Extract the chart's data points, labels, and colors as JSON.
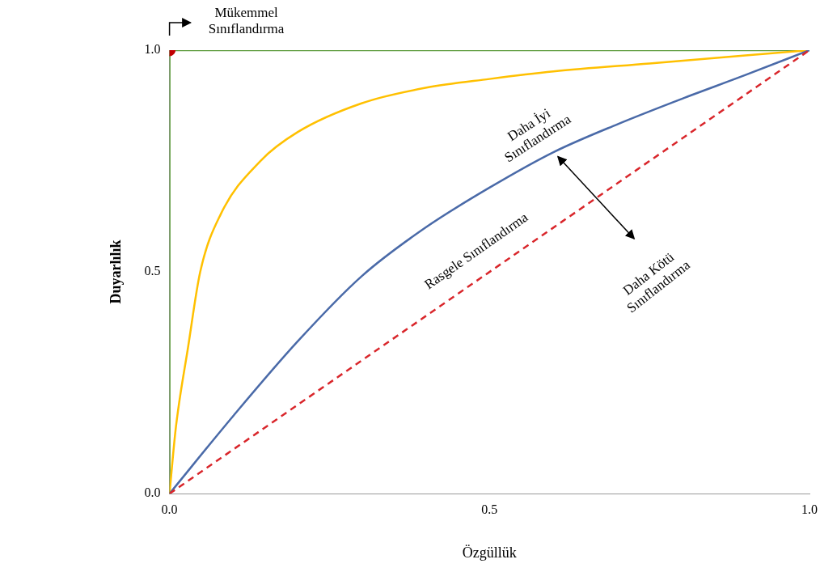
{
  "chart_data": {
    "type": "line",
    "xlabel": "Özgüllük",
    "ylabel": "Duyarlılık",
    "xlim": [
      0,
      1
    ],
    "ylim": [
      0,
      1
    ],
    "xticks": [
      {
        "value": 0,
        "label": "0.0"
      },
      {
        "value": 0.5,
        "label": "0.5"
      },
      {
        "value": 1,
        "label": "1.0"
      }
    ],
    "yticks": [
      {
        "value": 0,
        "label": "0.0"
      },
      {
        "value": 0.5,
        "label": "0.5"
      },
      {
        "value": 1,
        "label": "1.0"
      }
    ],
    "grid": false,
    "legend": false,
    "marker": "none",
    "series": [
      {
        "color": "#5b9a3a",
        "x": [
          0,
          0,
          1
        ],
        "values": [
          0,
          1,
          1
        ]
      },
      {
        "color": "#ffc000",
        "x": [
          0,
          0.01,
          0.029,
          0.048,
          0.08,
          0.142,
          0.2,
          0.3,
          0.4,
          0.5,
          0.6,
          0.75,
          0.9,
          1
        ],
        "values": [
          0,
          0.15,
          0.33,
          0.5,
          0.63,
          0.75,
          0.815,
          0.88,
          0.915,
          0.935,
          0.952,
          0.97,
          0.988,
          1
        ]
      },
      {
        "color": "#4a6aa8",
        "x": [
          0,
          0.1,
          0.2,
          0.3,
          0.4,
          0.5,
          0.6,
          0.7,
          0.8,
          0.9,
          1
        ],
        "values": [
          0,
          0.176,
          0.343,
          0.49,
          0.6,
          0.69,
          0.77,
          0.833,
          0.89,
          0.944,
          1
        ]
      },
      {
        "color": "#d9262b",
        "line_style": "dashed",
        "x": [
          0,
          1
        ],
        "values": [
          0,
          1
        ]
      },
      {
        "type": "scatter",
        "marker": "circle",
        "color": "#c00000",
        "x": [
          0
        ],
        "values": [
          1
        ]
      }
    ],
    "annotations": [
      "Mükemmel Sınıflandırma",
      "Daha İyi Sınıflandırma",
      "Rasgele Sınıflandırma",
      "Daha Kötü Sınıflandırma"
    ]
  }
}
